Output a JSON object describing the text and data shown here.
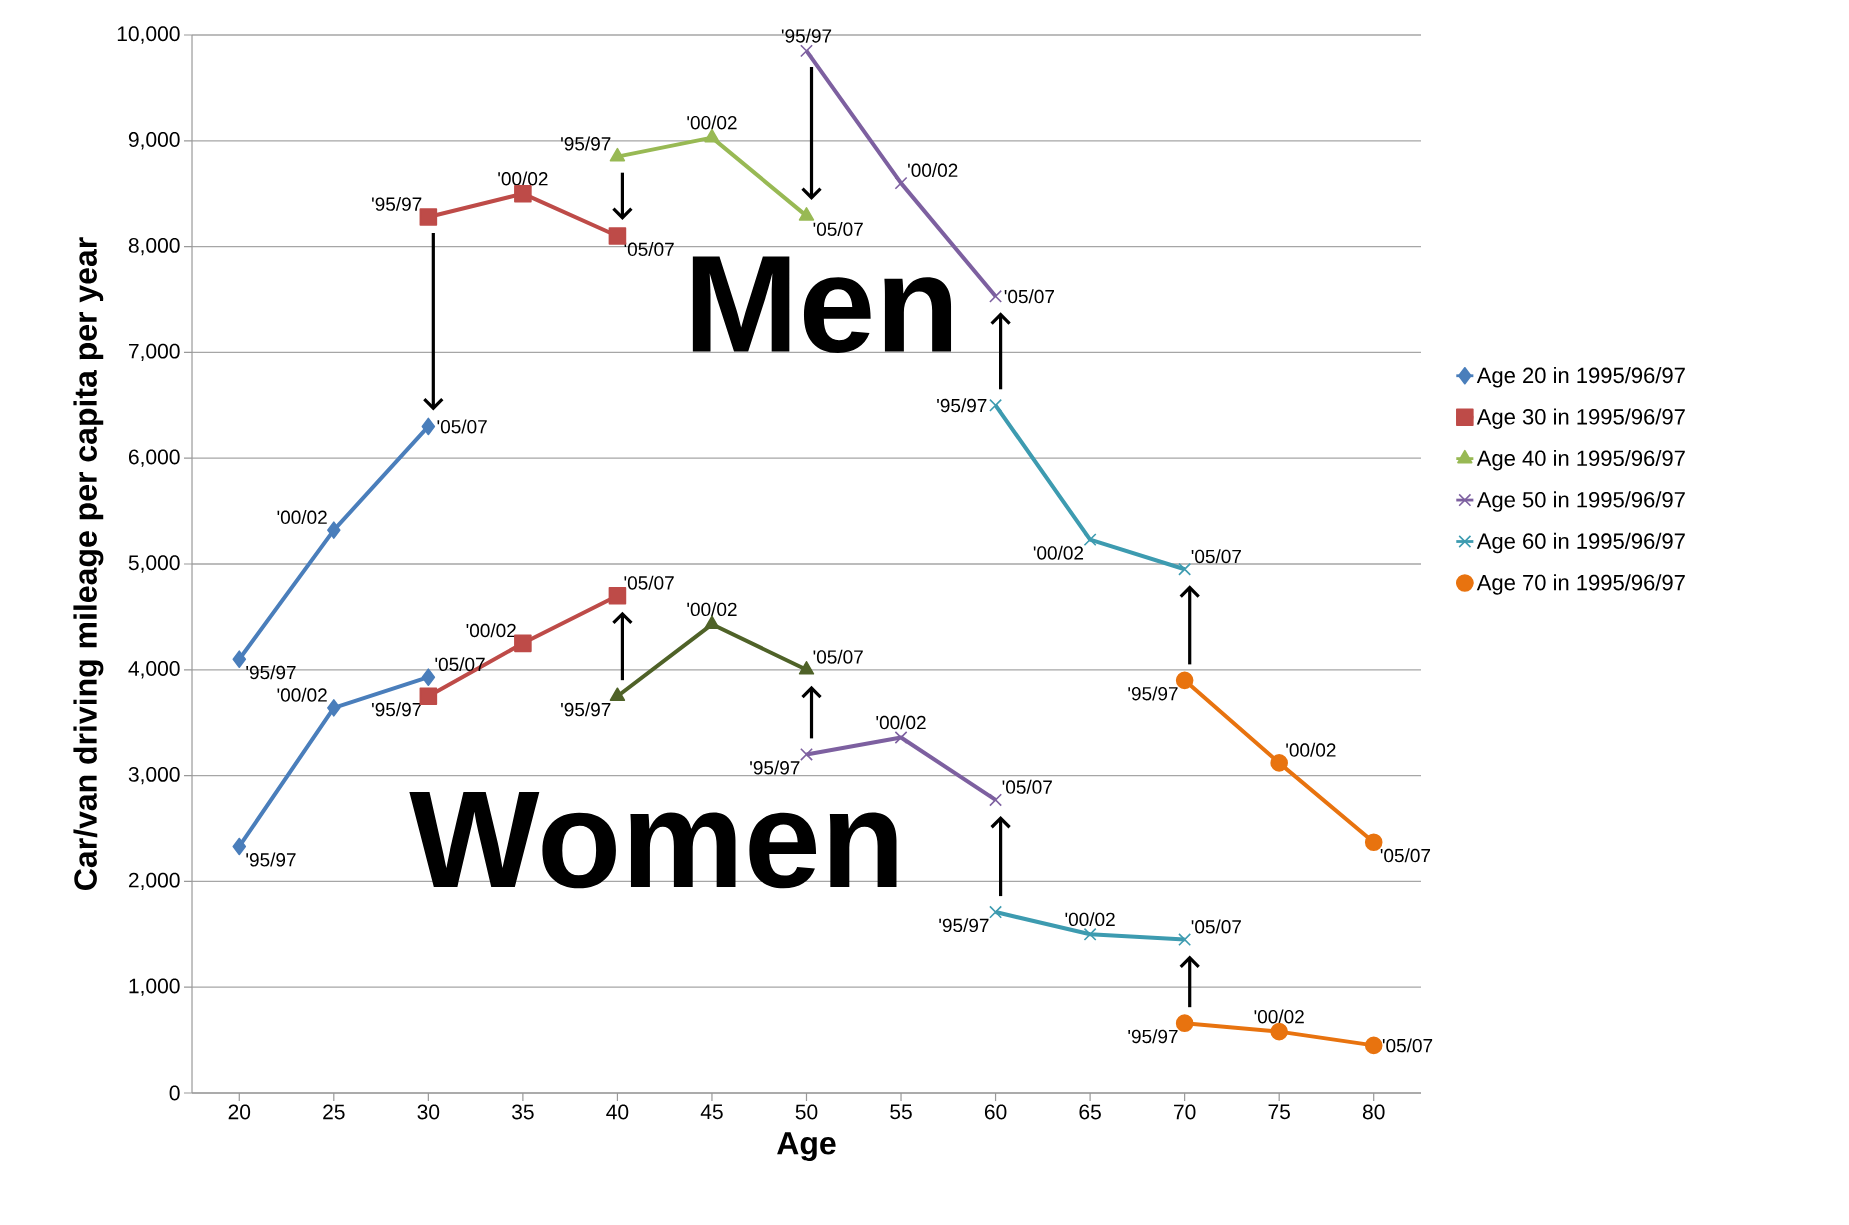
{
  "chart_data": {
    "type": "line",
    "xlabel": "Age",
    "ylabel": "Car/van driving mileage per capita per year",
    "xlim": [
      17.5,
      82.5
    ],
    "xticks": [
      20,
      25,
      30,
      35,
      40,
      45,
      50,
      55,
      60,
      65,
      70,
      75,
      80
    ],
    "ylim": [
      0,
      10000
    ],
    "yticks": [
      0,
      {
        "value": 1000,
        "label": "1,000"
      },
      {
        "value": 2000,
        "label": "2,000"
      },
      {
        "value": 3000,
        "label": "3,000"
      },
      {
        "value": 4000,
        "label": "4,000"
      },
      {
        "value": 5000,
        "label": "5,000"
      },
      {
        "value": 6000,
        "label": "6,000"
      },
      {
        "value": 7000,
        "label": "7,000"
      },
      {
        "value": 8000,
        "label": "8,000"
      },
      {
        "value": 9000,
        "label": "9,000"
      },
      {
        "value": 10000,
        "label": "10,000"
      }
    ],
    "grid": "y",
    "legend": "right",
    "series": [
      {
        "name": "Age 20 in 1995/96/97",
        "color": "#4a7ebb",
        "marker": "diamond",
        "x": [
          20,
          25,
          30
        ],
        "values": [
          4100,
          5320,
          6300
        ]
      },
      {
        "name": "Age 30 in 1995/96/97",
        "color": "#be4b48",
        "marker": "square",
        "x": [
          30,
          35,
          40
        ],
        "values": [
          8280,
          8500,
          8100
        ]
      },
      {
        "name": "Age 40 in 1995/96/97",
        "color": "#98b954",
        "marker": "triangle",
        "x": [
          40,
          45,
          50
        ],
        "values": [
          8850,
          9030,
          8290
        ]
      },
      {
        "name": "Age 50 in 1995/96/97",
        "color": "#7d60a0",
        "marker": "cross",
        "x": [
          50,
          55,
          60
        ],
        "values": [
          9850,
          8600,
          7530
        ]
      },
      {
        "name": "Age 60 in 1995/96/97",
        "color": "#3d9bb0",
        "marker": "cross",
        "x": [
          60,
          65,
          70
        ],
        "values": [
          6500,
          5230,
          4950
        ]
      },
      {
        "name": "Age 70 in 1995/96/97",
        "color": "#e8730f",
        "marker": "circle",
        "x": [
          70,
          75,
          80
        ],
        "values": [
          3900,
          3120,
          2370
        ]
      },
      {
        "color": "#4a7ebb",
        "marker": "diamond",
        "x": [
          20,
          25,
          30
        ],
        "values": [
          2330,
          3640,
          3930
        ]
      },
      {
        "color": "#be4b48",
        "marker": "square",
        "x": [
          30,
          35,
          40
        ],
        "values": [
          3750,
          4250,
          4700
        ]
      },
      {
        "color": "#4f6228",
        "marker": "triangle",
        "x": [
          40,
          45,
          50
        ],
        "values": [
          3750,
          4430,
          4000
        ]
      },
      {
        "color": "#7d60a0",
        "marker": "cross",
        "x": [
          50,
          55,
          60
        ],
        "values": [
          3200,
          3360,
          2770
        ]
      },
      {
        "color": "#3d9bb0",
        "marker": "cross",
        "x": [
          60,
          65,
          70
        ],
        "values": [
          1710,
          1500,
          1450
        ]
      },
      {
        "color": "#e8730f",
        "marker": "circle",
        "x": [
          70,
          75,
          80
        ],
        "values": [
          660,
          580,
          450
        ]
      }
    ],
    "annotations": [
      "Men",
      "Women",
      {
        "text": "'95/97",
        "x": 20,
        "y": 4100
      },
      {
        "text": "'00/02",
        "x": 25,
        "y": 5320
      },
      {
        "text": "'05/07",
        "x": 30,
        "y": 6300
      },
      {
        "text": "'95/97",
        "x": 30,
        "y": 8280
      },
      {
        "text": "'00/02",
        "x": 35,
        "y": 8500
      },
      {
        "text": "'05/07",
        "x": 40,
        "y": 8100
      },
      {
        "text": "'95/97",
        "x": 40,
        "y": 8850
      },
      {
        "text": "'00/02",
        "x": 45,
        "y": 9030
      },
      {
        "text": "'05/07",
        "x": 50,
        "y": 8290
      },
      {
        "text": "'95/97",
        "x": 50,
        "y": 9850
      },
      {
        "text": "'00/02",
        "x": 55,
        "y": 8600
      },
      {
        "text": "'05/07",
        "x": 60,
        "y": 7530
      },
      {
        "text": "'95/97",
        "x": 60,
        "y": 6500
      },
      {
        "text": "'00/02",
        "x": 65,
        "y": 5230
      },
      {
        "text": "'05/07",
        "x": 70,
        "y": 4950
      },
      {
        "text": "'95/97",
        "x": 70,
        "y": 3900
      },
      {
        "text": "'00/02",
        "x": 75,
        "y": 3120
      },
      {
        "text": "'05/07",
        "x": 80,
        "y": 2370
      },
      {
        "text": "'95/97",
        "x": 20,
        "y": 2330
      },
      {
        "text": "'00/02",
        "x": 25,
        "y": 3640
      },
      {
        "text": "'05/07",
        "x": 30,
        "y": 3930
      },
      {
        "text": "'95/97",
        "x": 30,
        "y": 3750
      },
      {
        "text": "'00/02",
        "x": 35,
        "y": 4250
      },
      {
        "text": "'05/07",
        "x": 40,
        "y": 4700
      },
      {
        "text": "'95/97",
        "x": 40,
        "y": 3750
      },
      {
        "text": "'00/02",
        "x": 45,
        "y": 4430
      },
      {
        "text": "'05/07",
        "x": 50,
        "y": 4000
      },
      {
        "text": "'95/97",
        "x": 50,
        "y": 3200
      },
      {
        "text": "'00/02",
        "x": 55,
        "y": 3360
      },
      {
        "text": "'05/07",
        "x": 60,
        "y": 2770
      },
      {
        "text": "'95/97",
        "x": 60,
        "y": 1710
      },
      {
        "text": "'00/02",
        "x": 65,
        "y": 1500
      },
      {
        "text": "'05/07",
        "x": 70,
        "y": 1450
      },
      {
        "text": "'95/97",
        "x": 70,
        "y": 660
      },
      {
        "text": "'00/02",
        "x": 75,
        "y": 580
      },
      {
        "text": "'05/07",
        "x": 80,
        "y": 450
      }
    ]
  }
}
